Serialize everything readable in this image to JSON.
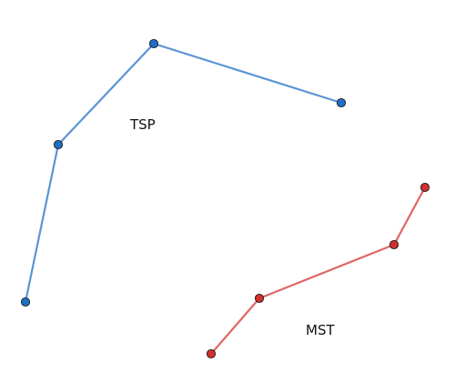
{
  "labels": {
    "tsp": "TSP",
    "mst": "MST"
  },
  "colors": {
    "tsp_edge": "#5b95d5",
    "tsp_node": "#1f6fc7",
    "mst_edge": "#e06666",
    "mst_node": "#d32f2f"
  },
  "graphs": {
    "tsp": {
      "label_key": "tsp",
      "node_count": 4,
      "edges": [
        [
          3,
          2
        ],
        [
          2,
          1
        ],
        [
          1,
          0
        ]
      ]
    },
    "mst": {
      "label_key": "mst",
      "node_count": 4,
      "edges": [
        [
          0,
          1
        ],
        [
          1,
          2
        ],
        [
          2,
          3
        ]
      ]
    }
  }
}
